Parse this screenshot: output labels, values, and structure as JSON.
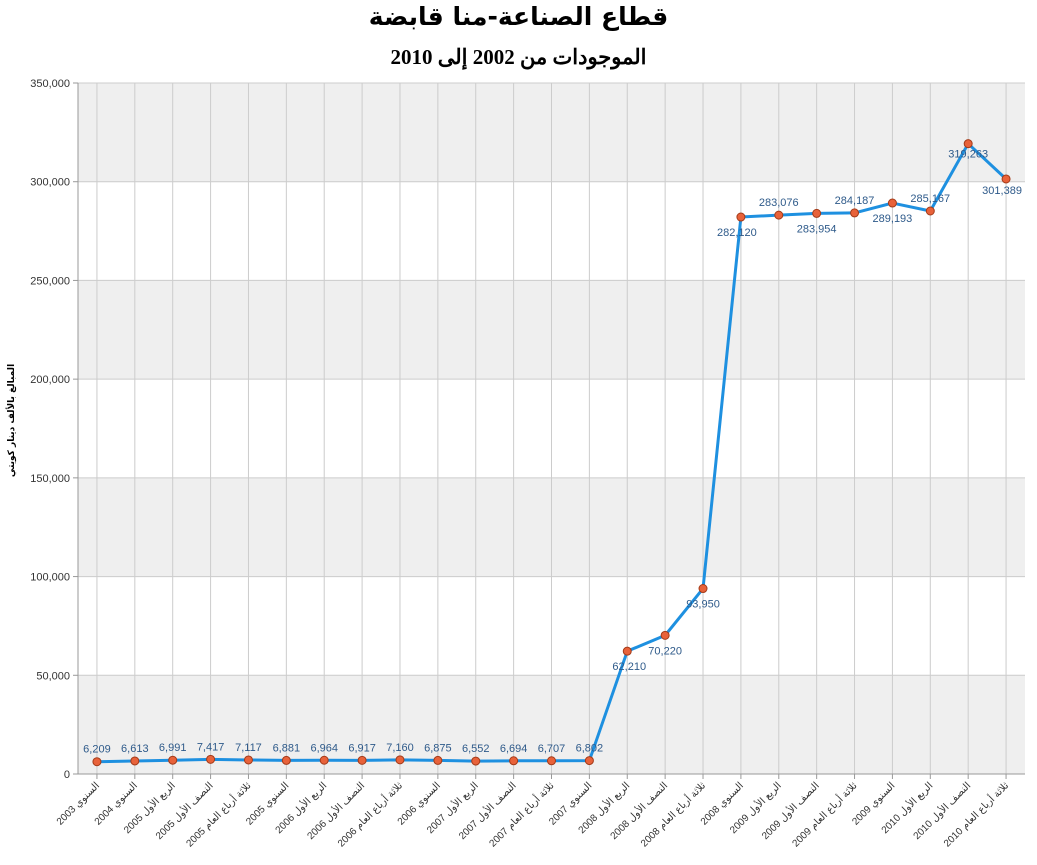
{
  "chart_data": {
    "type": "line",
    "title": "قطاع الصناعة-منا قابضة",
    "subtitle": "الموجودات من 2002 إلى 2010",
    "xlabel": "",
    "ylabel": "المبالغ بالألف دينار كويتي",
    "ylim": [
      0,
      350000
    ],
    "yticks": [
      0,
      50000,
      100000,
      150000,
      200000,
      250000,
      300000,
      350000
    ],
    "ytick_labels": [
      "0",
      "50,000",
      "100,000",
      "150,000",
      "200,000",
      "250,000",
      "300,000",
      "350,000"
    ],
    "grid": true,
    "legend": "none",
    "categories": [
      "السنوي 2003",
      "السنوي 2004",
      "الربع الأول 2005",
      "النصف الأول 2005",
      "ثلاثة أرباع العام 2005",
      "السنوي 2005",
      "الربع الأول 2006",
      "النصف الأول 2006",
      "ثلاثة أرباع العام 2006",
      "السنوي 2006",
      "الربع الأول 2007",
      "النصف الأول 2007",
      "ثلاثة أرباع العام 2007",
      "السنوي 2007",
      "الربع الأول 2008",
      "النصف الأول 2008",
      "ثلاثة أرباع العام 2008",
      "السنوي 2008",
      "الربع الأول 2009",
      "النصف الأول 2009",
      "ثلاثة أرباع العام 2009",
      "السنوي 2009",
      "الربع الأول 2010",
      "النصف الأول 2010",
      "ثلاثة أرباع العام 2010"
    ],
    "series": [
      {
        "values": [
          6209,
          6613,
          6991,
          7417,
          7117,
          6881,
          6964,
          6917,
          7160,
          6875,
          6552,
          6694,
          6707,
          6802,
          62210,
          70220,
          93950,
          282120,
          283076,
          283954,
          284187,
          289193,
          285167,
          319263,
          301389
        ],
        "data_labels": [
          "6,209",
          "6,613",
          "6,991",
          "7,417",
          "7,117",
          "6,881",
          "6,964",
          "6,917",
          "7,160",
          "6,875",
          "6,552",
          "6,694",
          "6,707",
          "6,802",
          "62,210",
          "70,220",
          "93,950",
          "282,120",
          "283,076",
          "283,954",
          "284,187",
          "289,193",
          "285,167",
          "319,263",
          "301,389"
        ],
        "color": "#1e90e0",
        "marker_color": "#e8623a"
      }
    ],
    "band_colors": [
      "#efefef",
      "#ffffff"
    ],
    "grid_color": "#cccccc"
  }
}
